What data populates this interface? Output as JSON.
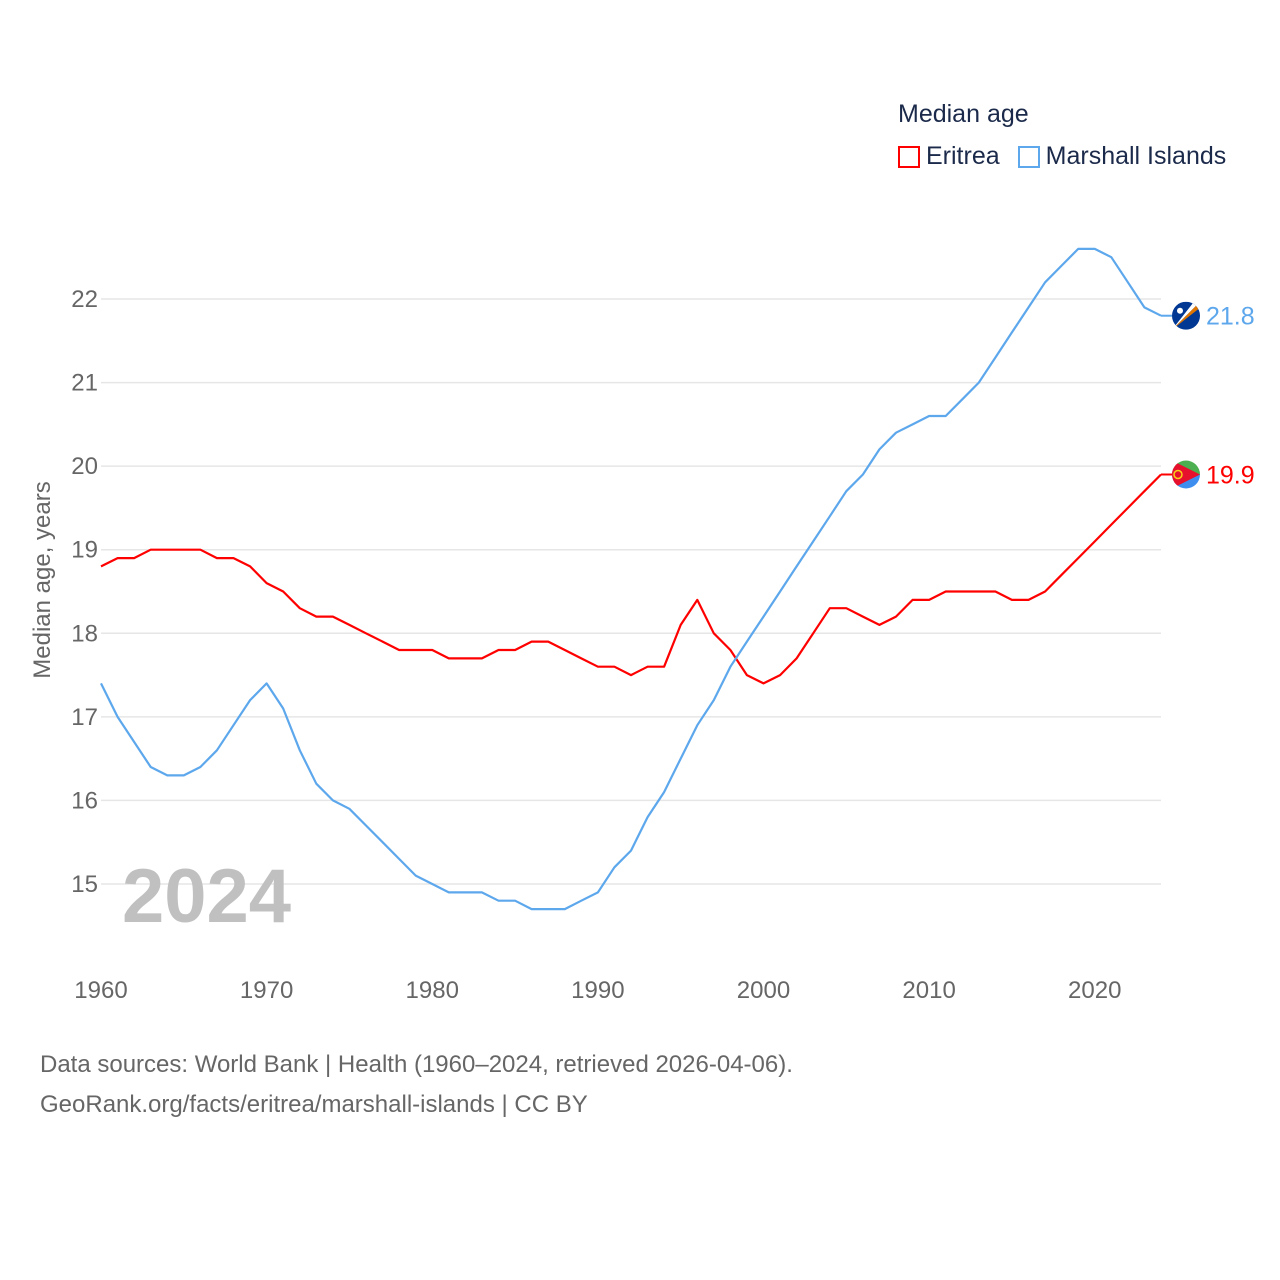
{
  "chart_data": {
    "type": "line",
    "title": "Median age",
    "ylabel": "Median age, years",
    "xlabel": "",
    "year_label": "2024",
    "ylim": [
      14.3,
      23.0
    ],
    "xlim": [
      1960,
      2024
    ],
    "yticks": [
      15,
      16,
      17,
      18,
      19,
      20,
      21,
      22
    ],
    "xticks": [
      1960,
      1970,
      1980,
      1990,
      2000,
      2010,
      2020
    ],
    "grid": true,
    "legend_position": "top-right",
    "x": [
      1960,
      1961,
      1962,
      1963,
      1964,
      1965,
      1966,
      1967,
      1968,
      1969,
      1970,
      1971,
      1972,
      1973,
      1974,
      1975,
      1976,
      1977,
      1978,
      1979,
      1980,
      1981,
      1982,
      1983,
      1984,
      1985,
      1986,
      1987,
      1988,
      1989,
      1990,
      1991,
      1992,
      1993,
      1994,
      1995,
      1996,
      1997,
      1998,
      1999,
      2000,
      2001,
      2002,
      2003,
      2004,
      2005,
      2006,
      2007,
      2008,
      2009,
      2010,
      2011,
      2012,
      2013,
      2014,
      2015,
      2016,
      2017,
      2018,
      2019,
      2020,
      2021,
      2022,
      2023,
      2024
    ],
    "series": [
      {
        "name": "Eritrea",
        "color": "#ff0000",
        "end_label": "19.9",
        "values": [
          18.8,
          18.9,
          18.9,
          19.0,
          19.0,
          19.0,
          19.0,
          18.9,
          18.9,
          18.8,
          18.6,
          18.5,
          18.3,
          18.2,
          18.2,
          18.1,
          18.0,
          17.9,
          17.8,
          17.8,
          17.8,
          17.7,
          17.7,
          17.7,
          17.8,
          17.8,
          17.9,
          17.9,
          17.8,
          17.7,
          17.6,
          17.6,
          17.5,
          17.6,
          17.6,
          18.1,
          18.4,
          18.0,
          17.8,
          17.5,
          17.4,
          17.5,
          17.7,
          18.0,
          18.3,
          18.3,
          18.2,
          18.1,
          18.2,
          18.4,
          18.4,
          18.5,
          18.5,
          18.5,
          18.5,
          18.4,
          18.4,
          18.5,
          18.7,
          18.9,
          19.1,
          19.3,
          19.5,
          19.7,
          19.9
        ]
      },
      {
        "name": "Marshall Islands",
        "color": "#5da7ec",
        "end_label": "21.8",
        "values": [
          17.4,
          17.0,
          16.7,
          16.4,
          16.3,
          16.3,
          16.4,
          16.6,
          16.9,
          17.2,
          17.4,
          17.1,
          16.6,
          16.2,
          16.0,
          15.9,
          15.7,
          15.5,
          15.3,
          15.1,
          15.0,
          14.9,
          14.9,
          14.9,
          14.8,
          14.8,
          14.7,
          14.7,
          14.7,
          14.8,
          14.9,
          15.2,
          15.4,
          15.8,
          16.1,
          16.5,
          16.9,
          17.2,
          17.6,
          17.9,
          18.2,
          18.5,
          18.8,
          19.1,
          19.4,
          19.7,
          19.9,
          20.2,
          20.4,
          20.5,
          20.6,
          20.6,
          20.8,
          21.0,
          21.3,
          21.6,
          21.9,
          22.2,
          22.4,
          22.6,
          22.6,
          22.5,
          22.2,
          21.9,
          21.8
        ]
      }
    ],
    "source_line1": "Data sources: World Bank | Health (1960–2024, retrieved 2026-04-06).",
    "source_line2": "GeoRank.org/facts/eritrea/marshall-islands | CC BY"
  }
}
